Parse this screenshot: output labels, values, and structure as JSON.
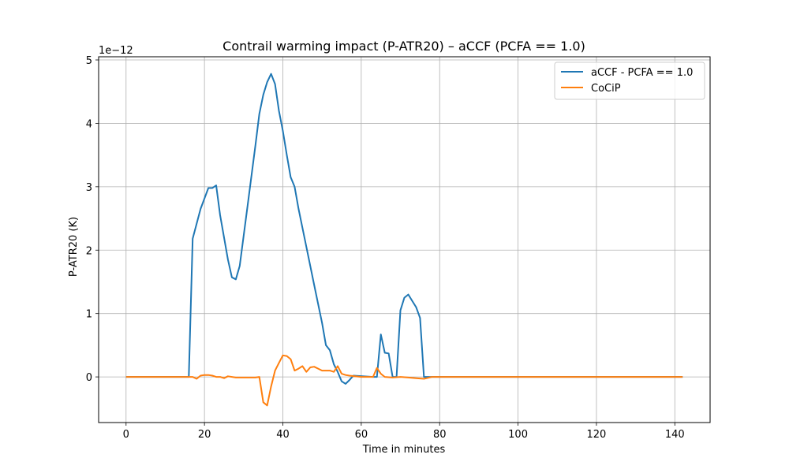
{
  "chart_data": {
    "type": "line",
    "title": "Contrail warming impact (P-ATR20) – aCCF (PCFA == 1.0)",
    "xlabel": "Time in minutes",
    "ylabel": "P-ATR20 (K)",
    "y_scale_label": "1e−12",
    "xlim": [
      -7,
      149
    ],
    "ylim": [
      -0.72,
      5.05
    ],
    "x_ticks": [
      0,
      20,
      40,
      60,
      80,
      100,
      120,
      140
    ],
    "x_tick_labels": [
      "0",
      "20",
      "40",
      "60",
      "80",
      "100",
      "120",
      "140"
    ],
    "y_ticks": [
      0,
      1,
      2,
      3,
      4,
      5
    ],
    "y_tick_labels": [
      "0",
      "1",
      "2",
      "3",
      "4",
      "5"
    ],
    "grid": true,
    "legend_position": "top-right",
    "series": [
      {
        "name": "aCCF - PCFA == 1.0",
        "color": "#1f77b4",
        "x": [
          0,
          16,
          17,
          19,
          21,
          22,
          23,
          24,
          26,
          27,
          28,
          29,
          31,
          33,
          34,
          35,
          36,
          37,
          38,
          39,
          40,
          41,
          42,
          43,
          44,
          46,
          48,
          50,
          51,
          52,
          53,
          54,
          55,
          56,
          57,
          58,
          63,
          64,
          65,
          66,
          67,
          68,
          69,
          70,
          71,
          72,
          73,
          74,
          75,
          76,
          77,
          80,
          100,
          120,
          142
        ],
        "values": [
          0,
          0,
          2.18,
          2.65,
          2.98,
          2.98,
          3.02,
          2.55,
          1.85,
          1.57,
          1.54,
          1.75,
          2.7,
          3.65,
          4.15,
          4.45,
          4.65,
          4.78,
          4.62,
          4.2,
          3.88,
          3.5,
          3.15,
          3.0,
          2.65,
          2.05,
          1.45,
          0.85,
          0.5,
          0.42,
          0.2,
          0.08,
          -0.07,
          -0.11,
          -0.05,
          0.02,
          0,
          0,
          0.67,
          0.38,
          0.37,
          0,
          0,
          1.05,
          1.25,
          1.3,
          1.2,
          1.1,
          0.93,
          0,
          0,
          0,
          0,
          0,
          0
        ]
      },
      {
        "name": "CoCiP",
        "color": "#ff7f0e",
        "x": [
          0,
          17,
          18,
          19,
          20,
          21,
          22,
          23,
          24,
          25,
          26,
          28,
          30,
          32,
          33,
          34,
          35,
          36,
          37,
          38,
          39,
          40,
          41,
          42,
          43,
          44,
          45,
          46,
          47,
          48,
          49,
          50,
          51,
          52,
          53,
          54,
          55,
          56,
          57,
          60,
          62,
          63,
          64,
          65,
          66,
          68,
          70,
          72,
          74,
          76,
          78,
          80,
          100,
          120,
          142
        ],
        "values": [
          0,
          0,
          -0.03,
          0.02,
          0.03,
          0.03,
          0.02,
          0.0,
          0.0,
          -0.02,
          0.01,
          -0.01,
          -0.01,
          -0.01,
          -0.01,
          0.0,
          -0.4,
          -0.45,
          -0.15,
          0.1,
          0.22,
          0.34,
          0.33,
          0.28,
          0.1,
          0.13,
          0.17,
          0.08,
          0.15,
          0.16,
          0.13,
          0.1,
          0.1,
          0.1,
          0.08,
          0.17,
          0.05,
          0.03,
          0.02,
          0.0,
          0.0,
          0.0,
          0.14,
          0.05,
          0.0,
          -0.01,
          0.0,
          -0.01,
          -0.02,
          -0.03,
          0.0,
          0.0,
          0.0,
          0.0,
          0.0
        ]
      }
    ]
  }
}
